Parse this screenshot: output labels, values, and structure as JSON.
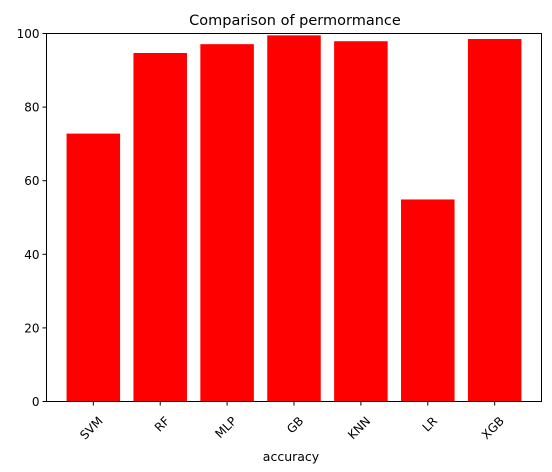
{
  "chart_data": {
    "type": "bar",
    "title": "Comparison of permormance",
    "xlabel": "accuracy",
    "ylabel": "",
    "categories": [
      "SVM",
      "RF",
      "MLP",
      "GB",
      "KNN",
      "LR",
      "XGB"
    ],
    "values": [
      72.8,
      94.7,
      97.1,
      99.5,
      97.9,
      54.9,
      98.5
    ],
    "ylim": [
      0,
      100
    ],
    "yticks": [
      0,
      20,
      40,
      60,
      80,
      100
    ],
    "bar_color": "#ff0000",
    "grid": false,
    "legend": "none"
  }
}
